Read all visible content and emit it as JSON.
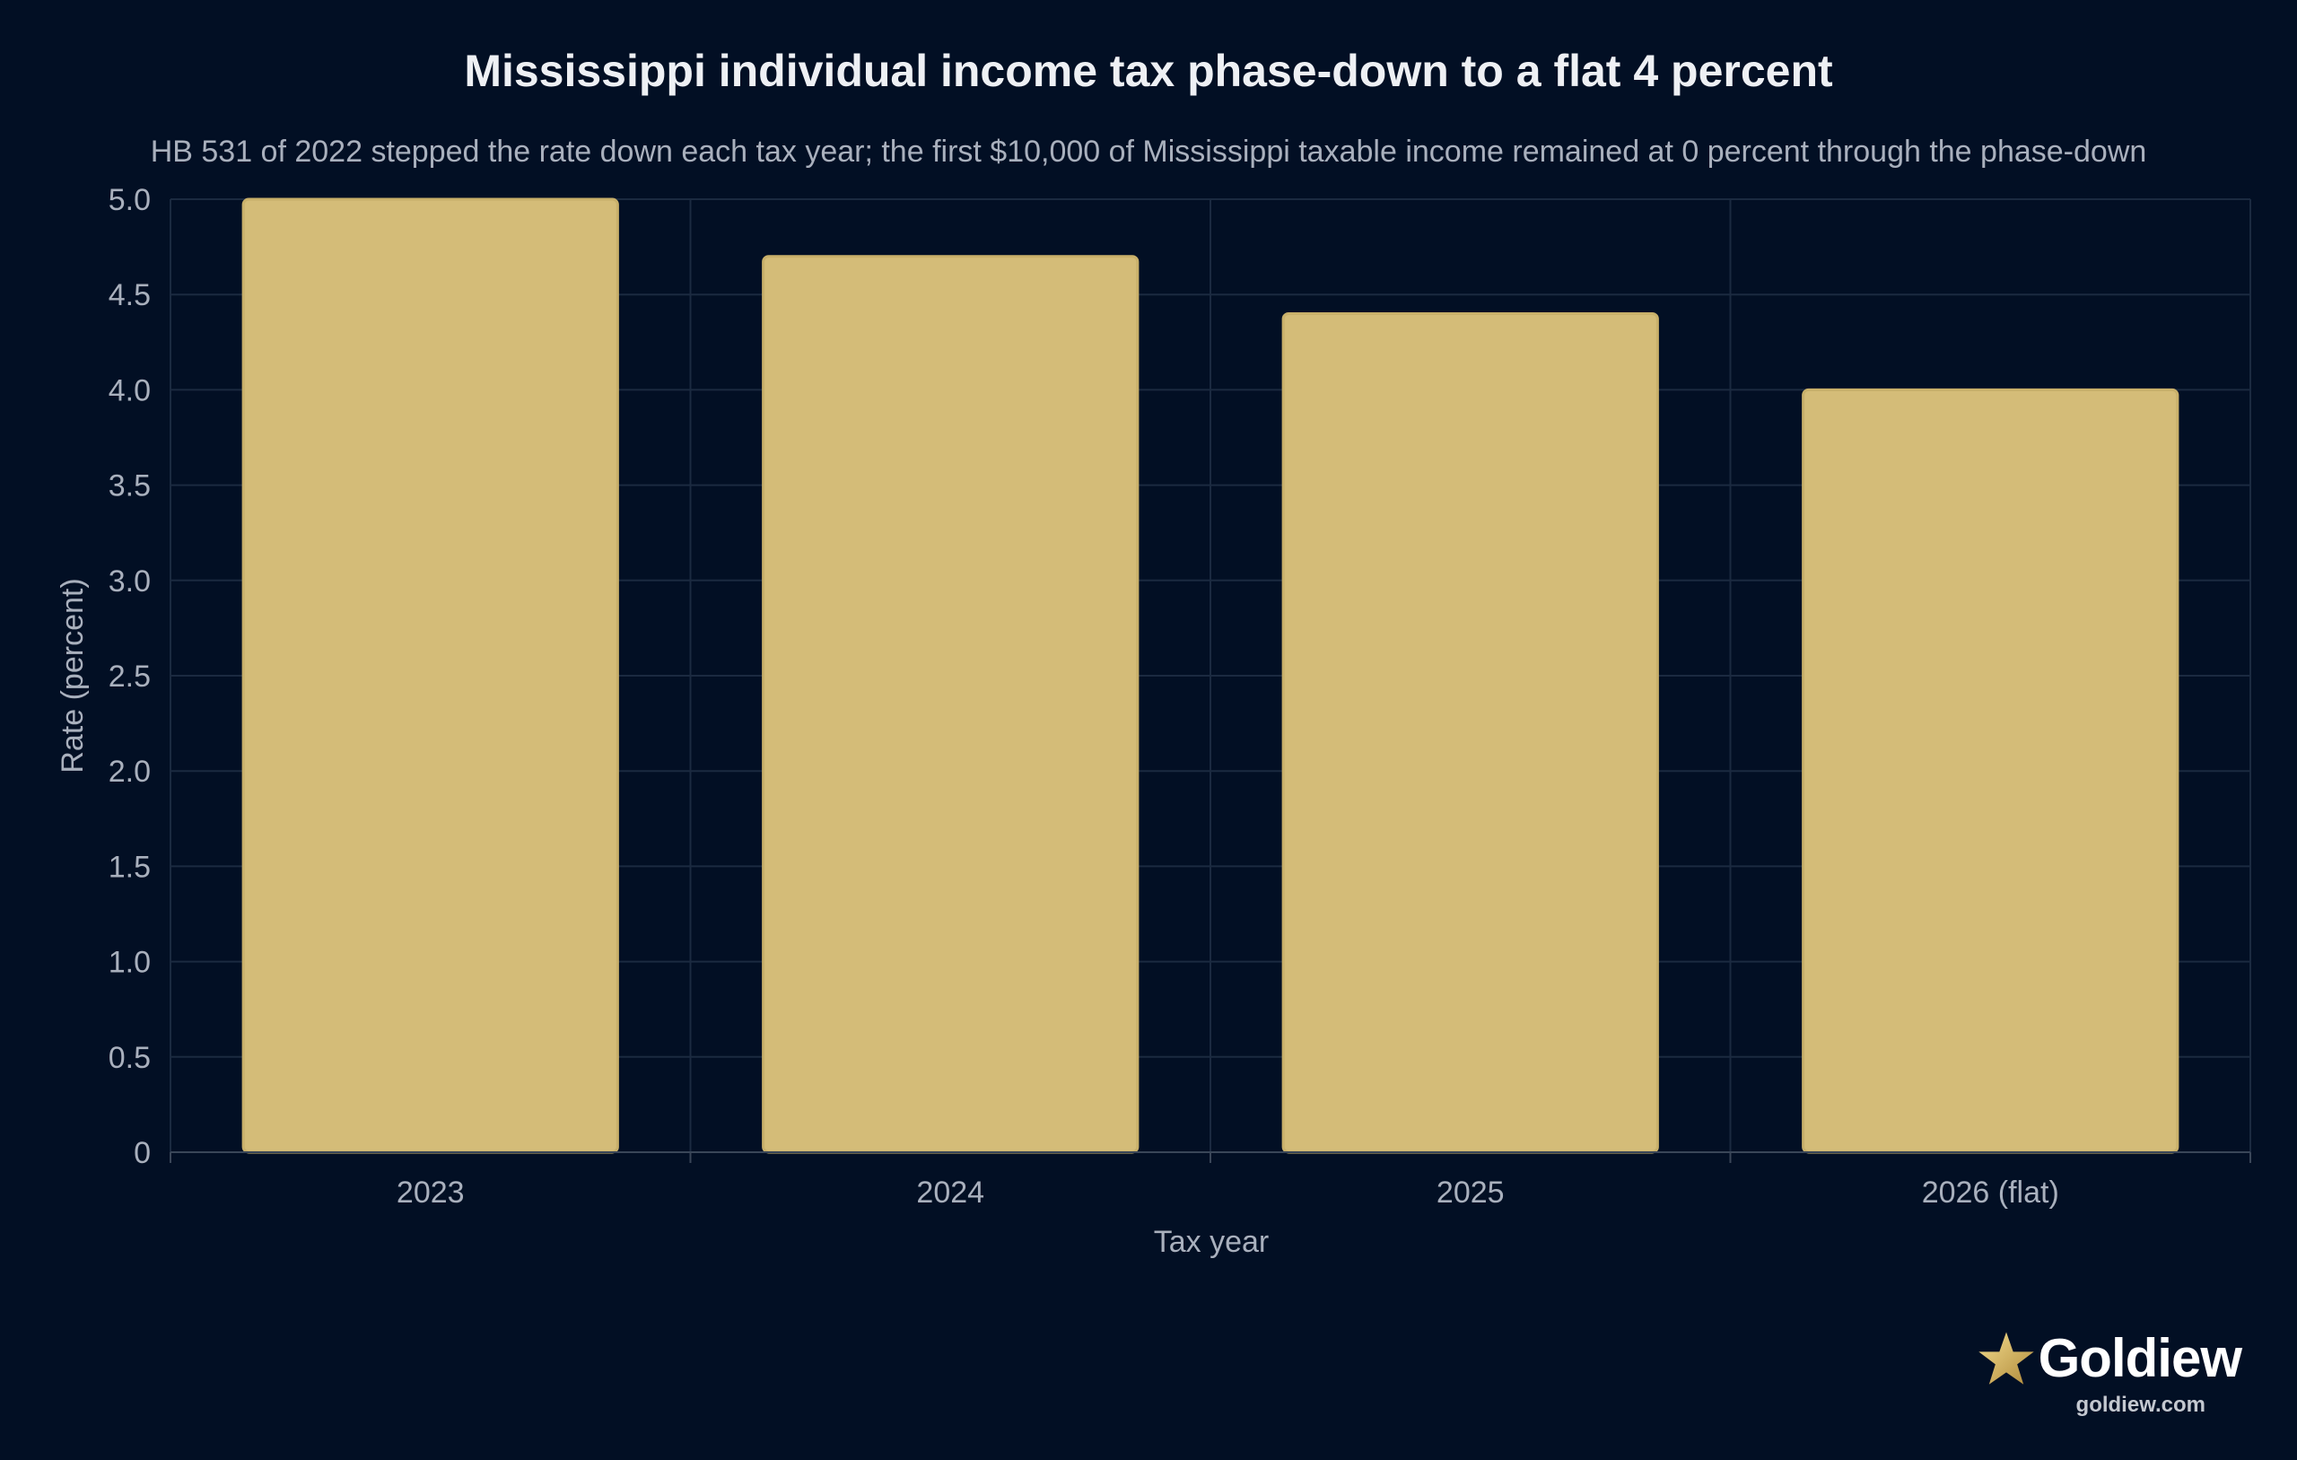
{
  "chart_data": {
    "type": "bar",
    "title": "Mississippi individual income tax phase-down to a flat 4 percent",
    "subtitle": "HB 531 of 2022 stepped the rate down each tax year; the first $10,000 of Mississippi taxable income remained at 0 percent through the phase-down",
    "xlabel": "Tax year",
    "ylabel": "Rate (percent)",
    "categories": [
      "2023",
      "2024",
      "2025",
      "2026 (flat)"
    ],
    "values": [
      5.0,
      4.7,
      4.4,
      4.0
    ],
    "ylim": [
      0,
      5.0
    ],
    "yticks": [
      "0",
      "0.5",
      "1.0",
      "1.5",
      "2.0",
      "2.5",
      "3.0",
      "3.5",
      "4.0",
      "4.5",
      "5.0"
    ],
    "grid": true,
    "colors": {
      "background": "#020f24",
      "bar": "#d4bc78",
      "bar_edge": "#c9b06a",
      "grid": "#1b2a40",
      "axis_text": "#a9b0bd"
    }
  },
  "branding": {
    "logo_name": "Goldiew",
    "logo_url": "goldiew.com",
    "logo_icon": "star-icon"
  }
}
